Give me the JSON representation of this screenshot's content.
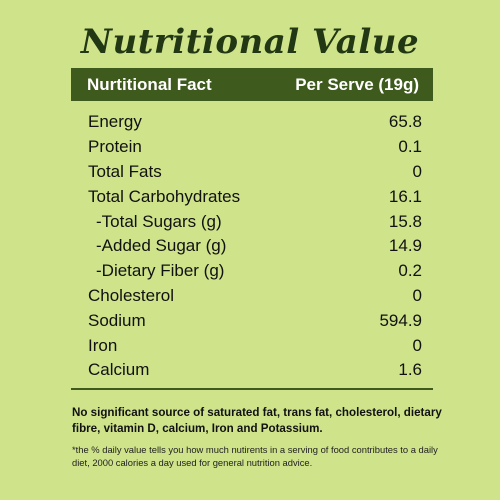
{
  "title": "Nutritional Value",
  "table": {
    "header": {
      "fact_label": "Nurtitional Fact",
      "serve_label": "Per Serve (19g)"
    },
    "rows": [
      {
        "label": "Energy",
        "value": "65.8"
      },
      {
        "label": "Protein",
        "value": "0.1"
      },
      {
        "label": "Total Fats",
        "value": "0"
      },
      {
        "label": "Total Carbohydrates",
        "value": "16.1"
      },
      {
        "label": "-Total Sugars (g)",
        "value": "15.8"
      },
      {
        "label": "-Added Sugar (g)",
        "value": "14.9"
      },
      {
        "label": "-Dietary Fiber (g)",
        "value": "0.2"
      },
      {
        "label": "Cholesterol",
        "value": "0"
      },
      {
        "label": "Sodium",
        "value": "594.9"
      },
      {
        "label": "Iron",
        "value": "0"
      },
      {
        "label": "Calcium",
        "value": "1.6"
      }
    ]
  },
  "note": "No significant source of saturated fat, trans fat, cholesterol, dietary fibre, vitamin D, calcium, Iron and Potassium.",
  "fineprint": "*the % daily value tells you how much nutirents in a serving of food contributes to a daily diet, 2000 calories a day used for general nutrition advice.",
  "colors": {
    "background": "#cfe38a",
    "header_bar": "#3f5a1d",
    "title": "#223814"
  }
}
